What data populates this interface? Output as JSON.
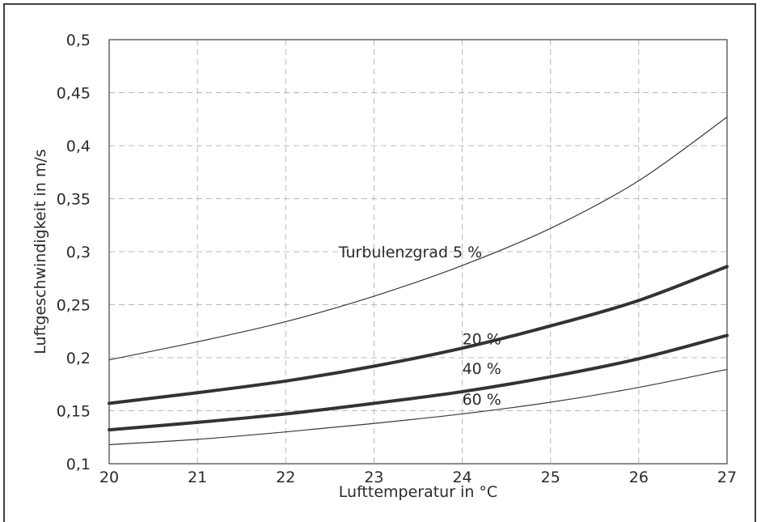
{
  "chart_data": {
    "type": "line",
    "title": "",
    "xlabel": "Lufttemperatur in °C",
    "ylabel": "Luftgeschwindigkeit in m/s",
    "xlim": [
      20,
      27
    ],
    "ylim": [
      0.1,
      0.5
    ],
    "grid": true,
    "x_ticks": [
      "20",
      "21",
      "22",
      "23",
      "24",
      "25",
      "26",
      "27"
    ],
    "y_ticks": [
      "0,1",
      "0,15",
      "0,2",
      "0,25",
      "0,3",
      "0,35",
      "0,4",
      "0,45",
      "0,5"
    ],
    "x": [
      20,
      21,
      22,
      23,
      24,
      25,
      26,
      27
    ],
    "series": [
      {
        "name": "Turbulenzgrad 5 %",
        "values": [
          0.198,
          0.215,
          0.234,
          0.258,
          0.287,
          0.322,
          0.367,
          0.427
        ],
        "color": "#3a3a3a"
      },
      {
        "name": "20 %",
        "values": [
          0.157,
          0.167,
          0.178,
          0.192,
          0.209,
          0.23,
          0.254,
          0.286
        ],
        "color": "#333333"
      },
      {
        "name": "40 %",
        "values": [
          0.132,
          0.139,
          0.147,
          0.157,
          0.168,
          0.182,
          0.199,
          0.221
        ],
        "color": "#333333"
      },
      {
        "name": "60 %",
        "values": [
          0.118,
          0.123,
          0.13,
          0.138,
          0.147,
          0.158,
          0.172,
          0.189
        ],
        "color": "#3a3a3a"
      }
    ]
  }
}
